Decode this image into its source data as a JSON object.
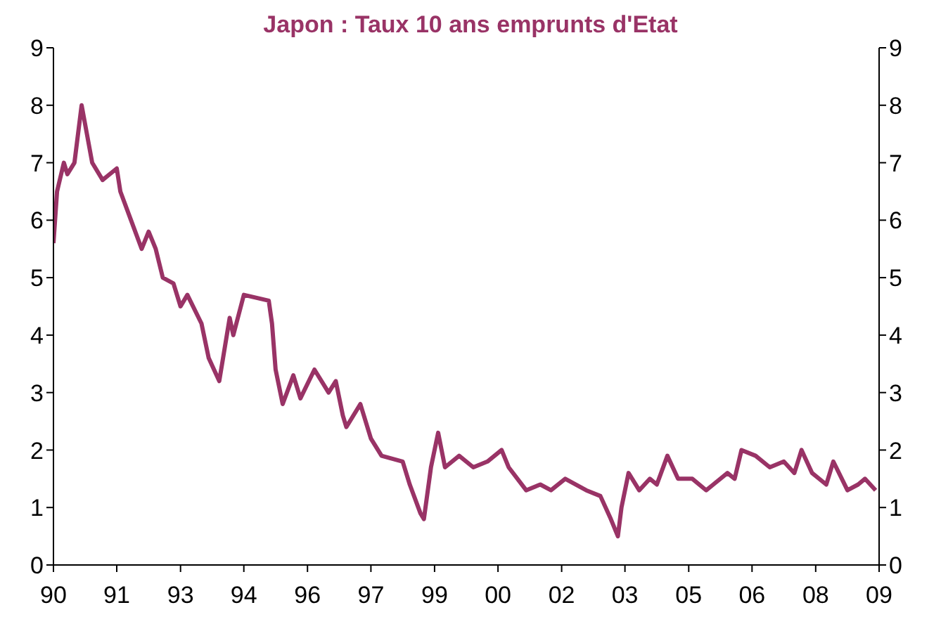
{
  "chart_data": {
    "type": "line",
    "title": "Japon : Taux 10 ans emprunts d'Etat",
    "x": [
      "1990-01",
      "1990-02",
      "1990-04",
      "1990-05",
      "1990-07",
      "1990-09",
      "1990-12",
      "1991-03",
      "1991-07",
      "1991-08",
      "1991-11",
      "1992-02",
      "1992-04",
      "1992-06",
      "1992-08",
      "1992-11",
      "1993-01",
      "1993-03",
      "1993-07",
      "1993-09",
      "1993-12",
      "1994-03",
      "1994-04",
      "1994-07",
      "1995-02",
      "1995-03",
      "1995-04",
      "1995-06",
      "1995-09",
      "1995-11",
      "1996-03",
      "1996-07",
      "1996-09",
      "1996-11",
      "1996-12",
      "1997-04",
      "1997-07",
      "1997-10",
      "1998-04",
      "1998-06",
      "1998-09",
      "1998-10",
      "1998-12",
      "1999-02",
      "1999-04",
      "1999-08",
      "1999-12",
      "2000-04",
      "2000-08",
      "2000-10",
      "2001-03",
      "2001-07",
      "2001-10",
      "2002-02",
      "2002-08",
      "2002-12",
      "2003-03",
      "2003-05",
      "2003-06",
      "2003-08",
      "2003-11",
      "2004-02",
      "2004-04",
      "2004-07",
      "2004-10",
      "2005-02",
      "2005-06",
      "2005-08",
      "2005-12",
      "2006-02",
      "2006-04",
      "2006-08",
      "2006-12",
      "2007-04",
      "2007-07",
      "2007-09",
      "2007-12",
      "2008-04",
      "2008-06",
      "2008-10",
      "2009-01",
      "2009-03",
      "2009-06"
    ],
    "series": [
      {
        "color": "#993366",
        "values": [
          5.6,
          6.5,
          7.0,
          6.8,
          7.0,
          8.0,
          7.0,
          6.7,
          6.9,
          6.5,
          6.0,
          5.5,
          5.8,
          5.5,
          5.0,
          4.9,
          4.5,
          4.7,
          4.2,
          3.6,
          3.2,
          4.3,
          4.0,
          4.7,
          4.6,
          4.2,
          3.4,
          2.8,
          3.3,
          2.9,
          3.4,
          3.0,
          3.2,
          2.6,
          2.4,
          2.8,
          2.2,
          1.9,
          1.8,
          1.4,
          0.9,
          0.8,
          1.7,
          2.3,
          1.7,
          1.9,
          1.7,
          1.8,
          2.0,
          1.7,
          1.3,
          1.4,
          1.3,
          1.5,
          1.3,
          1.2,
          0.8,
          0.5,
          1.0,
          1.6,
          1.3,
          1.5,
          1.4,
          1.9,
          1.5,
          1.5,
          1.3,
          1.4,
          1.6,
          1.5,
          2.0,
          1.9,
          1.7,
          1.8,
          1.6,
          2.0,
          1.6,
          1.4,
          1.8,
          1.3,
          1.4,
          1.5,
          1.3
        ]
      }
    ],
    "xlim": [
      "1990-01",
      "2009-07"
    ],
    "xticks": [
      {
        "value": "1990-01",
        "label": "90"
      },
      {
        "value": "1991-07",
        "label": "91"
      },
      {
        "value": "1993-01",
        "label": "93"
      },
      {
        "value": "1994-07",
        "label": "94"
      },
      {
        "value": "1996-01",
        "label": "96"
      },
      {
        "value": "1997-07",
        "label": "97"
      },
      {
        "value": "1999-01",
        "label": "99"
      },
      {
        "value": "2000-07",
        "label": "00"
      },
      {
        "value": "2002-01",
        "label": "02"
      },
      {
        "value": "2003-07",
        "label": "03"
      },
      {
        "value": "2005-01",
        "label": "05"
      },
      {
        "value": "2006-07",
        "label": "06"
      },
      {
        "value": "2008-01",
        "label": "08"
      },
      {
        "value": "2009-07",
        "label": "09"
      }
    ],
    "ylim": [
      0,
      9
    ],
    "yticks": [
      0,
      1,
      2,
      3,
      4,
      5,
      6,
      7,
      8,
      9
    ],
    "y2lim": [
      0,
      9
    ],
    "y2ticks": [
      0,
      1,
      2,
      3,
      4,
      5,
      6,
      7,
      8,
      9
    ],
    "grid": false,
    "legend": false,
    "marker": "none",
    "line_style": "solid"
  }
}
